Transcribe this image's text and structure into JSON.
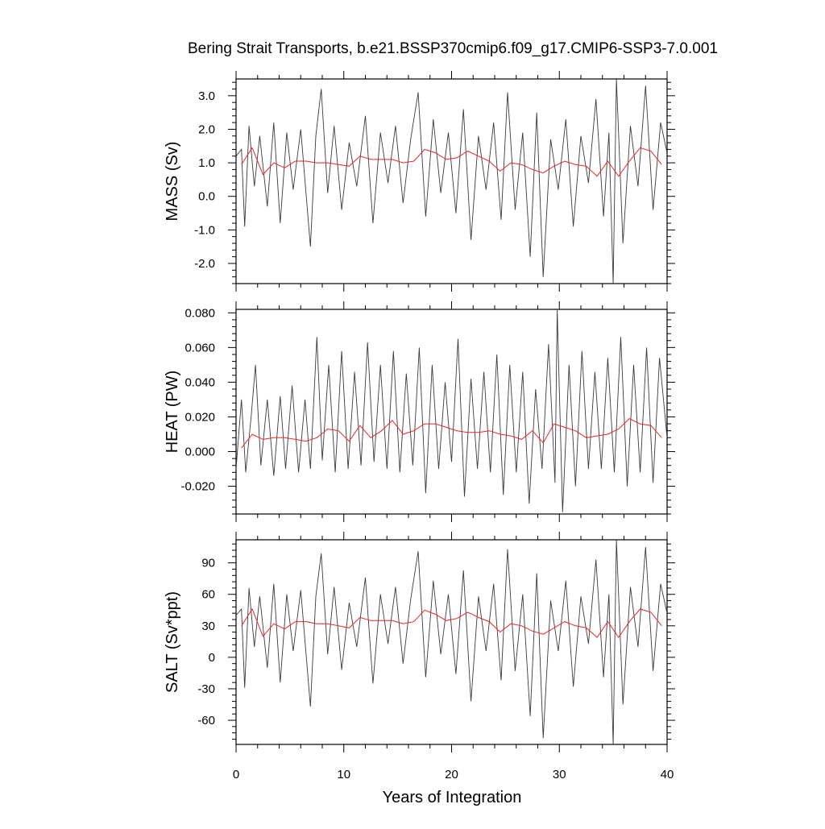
{
  "title": "Bering Strait Transports, b.e21.BSSP370cmip6.f09_g17.CMIP6-SSP3-7.0.001",
  "xlabel": "Years of Integration",
  "colors": {
    "monthly": "#3a3a3a",
    "annual": "#e8262a",
    "axis": "#000000"
  },
  "chart_data": [
    {
      "type": "line",
      "panel": "mass",
      "ylabel": "MASS (Sv)",
      "xlim": [
        0,
        40
      ],
      "ylim": [
        -2.6,
        3.5
      ],
      "x_ticks": [
        0,
        10,
        20,
        30,
        40
      ],
      "y_ticks": [
        -2.0,
        -1.0,
        0.0,
        1.0,
        2.0,
        3.0
      ],
      "y_tick_labels": [
        "-2.0",
        "-1.0",
        "0.0",
        "1.0",
        "2.0",
        "3.0"
      ],
      "monthly_sample": {
        "x": [
          0.0,
          0.5,
          0.8,
          1.2,
          1.7,
          2.2,
          2.9,
          3.5,
          4.1,
          4.7,
          5.3,
          6.0,
          6.9,
          7.4,
          7.9,
          8.5,
          9.1,
          9.8,
          10.5,
          11.2,
          12.0,
          12.7,
          13.4,
          14.1,
          14.8,
          15.5,
          16.2,
          16.9,
          17.6,
          18.3,
          19.0,
          19.7,
          20.4,
          21.1,
          21.8,
          22.5,
          23.2,
          23.9,
          24.6,
          25.2,
          25.9,
          26.6,
          27.3,
          27.9,
          28.5,
          29.2,
          29.9,
          30.6,
          31.3,
          32.0,
          32.7,
          33.4,
          34.1,
          34.6,
          35.0,
          35.3,
          35.9,
          36.6,
          37.3,
          38.0,
          38.7,
          39.4,
          40.0
        ],
        "y": [
          1.2,
          1.4,
          -0.9,
          2.1,
          0.3,
          1.8,
          -0.3,
          2.2,
          -0.8,
          1.9,
          0.2,
          2.0,
          -1.5,
          1.8,
          3.2,
          0.1,
          2.1,
          -0.4,
          1.6,
          0.3,
          2.4,
          -0.8,
          1.9,
          0.4,
          2.1,
          -0.2,
          1.7,
          3.1,
          -0.6,
          2.3,
          0.1,
          1.9,
          -0.5,
          2.6,
          -1.3,
          1.8,
          0.2,
          2.2,
          -0.7,
          3.1,
          -0.4,
          1.9,
          -1.8,
          2.5,
          -2.4,
          1.7,
          0.2,
          2.3,
          -0.9,
          1.8,
          0.4,
          2.9,
          -0.6,
          1.9,
          -2.6,
          3.5,
          -1.4,
          2.1,
          0.3,
          3.3,
          -0.4,
          2.2,
          1.3
        ]
      },
      "annual_mean": {
        "x": [
          0.5,
          1.5,
          2.5,
          3.5,
          4.5,
          5.5,
          6.5,
          7.5,
          8.5,
          9.5,
          10.5,
          11.5,
          12.5,
          13.5,
          14.5,
          15.5,
          16.5,
          17.5,
          18.5,
          19.5,
          20.5,
          21.5,
          22.5,
          23.5,
          24.5,
          25.5,
          26.5,
          27.5,
          28.5,
          29.5,
          30.5,
          31.5,
          32.5,
          33.5,
          34.5,
          35.5,
          36.5,
          37.5,
          38.5,
          39.5
        ],
        "y": [
          0.95,
          1.45,
          0.65,
          1.0,
          0.85,
          1.05,
          1.05,
          1.0,
          1.0,
          0.95,
          0.9,
          1.2,
          1.1,
          1.1,
          1.1,
          1.0,
          1.05,
          1.4,
          1.3,
          1.1,
          1.15,
          1.35,
          1.2,
          1.05,
          0.75,
          1.0,
          0.95,
          0.8,
          0.7,
          0.9,
          1.05,
          0.95,
          0.9,
          0.6,
          1.05,
          0.6,
          1.05,
          1.45,
          1.35,
          0.95
        ]
      }
    },
    {
      "type": "line",
      "panel": "heat",
      "ylabel": "HEAT (PW)",
      "xlim": [
        0,
        40
      ],
      "ylim": [
        -0.036,
        0.082
      ],
      "x_ticks": [
        0,
        10,
        20,
        30,
        40
      ],
      "y_ticks": [
        -0.02,
        0.0,
        0.02,
        0.04,
        0.06,
        0.08
      ],
      "y_tick_labels": [
        "-0.020",
        "0.000",
        "0.020",
        "0.040",
        "0.060",
        "0.080"
      ],
      "monthly_sample": {
        "x": [
          0.0,
          0.5,
          0.9,
          1.4,
          1.8,
          2.3,
          2.9,
          3.5,
          4.1,
          4.6,
          5.2,
          5.8,
          6.4,
          6.9,
          7.5,
          8.0,
          8.6,
          9.2,
          9.8,
          10.4,
          11.0,
          11.6,
          12.2,
          12.8,
          13.4,
          14.0,
          14.6,
          15.2,
          15.8,
          16.4,
          17.0,
          17.6,
          18.2,
          18.8,
          19.4,
          20.0,
          20.6,
          21.2,
          21.8,
          22.4,
          23.0,
          23.6,
          24.2,
          24.8,
          25.4,
          26.0,
          26.6,
          27.2,
          27.8,
          28.4,
          29.0,
          29.6,
          29.8,
          30.3,
          30.9,
          31.5,
          32.1,
          32.7,
          33.3,
          33.9,
          34.5,
          35.1,
          35.7,
          36.3,
          36.9,
          37.5,
          38.1,
          38.7,
          39.3,
          40.0
        ],
        "y": [
          -0.01,
          0.03,
          -0.012,
          0.02,
          0.05,
          -0.008,
          0.03,
          -0.014,
          0.032,
          -0.01,
          0.038,
          -0.012,
          0.03,
          -0.01,
          0.066,
          -0.005,
          0.05,
          -0.012,
          0.058,
          -0.01,
          0.046,
          -0.008,
          0.063,
          -0.006,
          0.05,
          -0.01,
          0.058,
          -0.012,
          0.045,
          -0.008,
          0.06,
          -0.024,
          0.05,
          -0.01,
          0.04,
          -0.006,
          0.065,
          -0.026,
          0.042,
          -0.01,
          0.046,
          -0.012,
          0.056,
          -0.025,
          0.05,
          -0.012,
          0.046,
          -0.03,
          0.036,
          -0.01,
          0.062,
          -0.018,
          0.082,
          -0.035,
          0.05,
          -0.02,
          0.058,
          -0.01,
          0.046,
          -0.01,
          0.054,
          -0.012,
          0.066,
          -0.02,
          0.05,
          -0.012,
          0.06,
          -0.018,
          0.054,
          0.008
        ]
      },
      "annual_mean": {
        "x": [
          0.5,
          1.5,
          2.5,
          3.5,
          4.5,
          5.5,
          6.5,
          7.5,
          8.5,
          9.5,
          10.5,
          11.5,
          12.5,
          13.5,
          14.5,
          15.5,
          16.5,
          17.5,
          18.5,
          19.5,
          20.5,
          21.5,
          22.5,
          23.5,
          24.5,
          25.5,
          26.5,
          27.5,
          28.5,
          29.5,
          30.5,
          31.5,
          32.5,
          33.5,
          34.5,
          35.5,
          36.5,
          37.5,
          38.5,
          39.5
        ],
        "y": [
          0.002,
          0.01,
          0.007,
          0.008,
          0.008,
          0.007,
          0.006,
          0.008,
          0.013,
          0.012,
          0.006,
          0.015,
          0.008,
          0.012,
          0.018,
          0.01,
          0.012,
          0.016,
          0.016,
          0.014,
          0.012,
          0.011,
          0.011,
          0.012,
          0.01,
          0.009,
          0.007,
          0.012,
          0.005,
          0.016,
          0.014,
          0.012,
          0.008,
          0.009,
          0.01,
          0.013,
          0.019,
          0.016,
          0.015,
          0.008
        ]
      }
    },
    {
      "type": "line",
      "panel": "salt",
      "ylabel": "SALT (Sv*ppt)",
      "xlim": [
        0,
        40
      ],
      "ylim": [
        -83,
        112
      ],
      "x_ticks": [
        0,
        10,
        20,
        30,
        40
      ],
      "x_tick_labels": [
        "0",
        "10",
        "20",
        "30",
        "40"
      ],
      "y_ticks": [
        -60,
        -30,
        0,
        30,
        60,
        90
      ],
      "y_tick_labels": [
        "-60",
        "-30",
        "0",
        "30",
        "60",
        "90"
      ],
      "monthly_sample": {
        "x": [
          0.0,
          0.5,
          0.8,
          1.2,
          1.7,
          2.2,
          2.9,
          3.5,
          4.1,
          4.7,
          5.3,
          6.0,
          6.9,
          7.4,
          7.9,
          8.5,
          9.1,
          9.8,
          10.5,
          11.2,
          12.0,
          12.7,
          13.4,
          14.1,
          14.8,
          15.5,
          16.2,
          16.9,
          17.6,
          18.3,
          19.0,
          19.7,
          20.4,
          21.1,
          21.8,
          22.5,
          23.2,
          23.9,
          24.6,
          25.2,
          25.9,
          26.6,
          27.3,
          27.9,
          28.5,
          29.2,
          29.9,
          30.6,
          31.3,
          32.0,
          32.7,
          33.4,
          34.1,
          34.6,
          35.0,
          35.3,
          35.9,
          36.6,
          37.3,
          38.0,
          38.7,
          39.4,
          40.0
        ],
        "y": [
          40,
          46,
          -29,
          66,
          10,
          58,
          -10,
          70,
          -24,
          60,
          6,
          64,
          -47,
          58,
          99,
          3,
          67,
          -12,
          52,
          10,
          76,
          -25,
          60,
          13,
          67,
          -6,
          55,
          101,
          -19,
          73,
          3,
          60,
          -16,
          83,
          -42,
          58,
          6,
          70,
          -22,
          103,
          -13,
          60,
          -56,
          80,
          -77,
          54,
          6,
          73,
          -28,
          58,
          13,
          93,
          -19,
          60,
          -83,
          112,
          -45,
          67,
          10,
          105,
          -13,
          70,
          42
        ]
      },
      "annual_mean": {
        "x": [
          0.5,
          1.5,
          2.5,
          3.5,
          4.5,
          5.5,
          6.5,
          7.5,
          8.5,
          9.5,
          10.5,
          11.5,
          12.5,
          13.5,
          14.5,
          15.5,
          16.5,
          17.5,
          18.5,
          19.5,
          20.5,
          21.5,
          22.5,
          23.5,
          24.5,
          25.5,
          26.5,
          27.5,
          28.5,
          29.5,
          30.5,
          31.5,
          32.5,
          33.5,
          34.5,
          35.5,
          36.5,
          37.5,
          38.5,
          39.5
        ],
        "y": [
          30,
          46,
          20,
          32,
          27,
          34,
          34,
          32,
          32,
          30,
          28,
          38,
          35,
          35,
          35,
          32,
          34,
          45,
          41,
          35,
          37,
          43,
          38,
          34,
          24,
          32,
          30,
          25,
          22,
          28,
          34,
          30,
          28,
          19,
          34,
          19,
          34,
          46,
          43,
          30
        ]
      }
    }
  ]
}
